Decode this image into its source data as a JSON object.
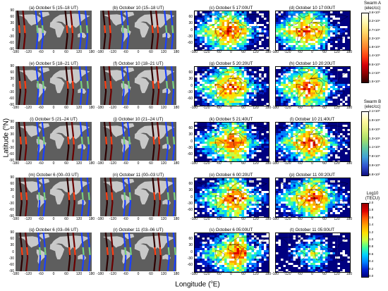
{
  "axis": {
    "ylabel_main": "Latitude (",
    "ylabel_deg": "o",
    "ylabel_tail": "N)",
    "xlabel_main": "Longitude (",
    "xlabel_deg": "o",
    "xlabel_tail": "E)",
    "lat_ticks": [
      "90",
      "60",
      "30",
      "0",
      "-30",
      "-60",
      "-90"
    ],
    "lon_ticks": [
      "-180",
      "-120",
      "-60",
      "0",
      "60",
      "120",
      "180"
    ],
    "tec_lat_ticks": [
      "60",
      "30",
      "0",
      "-30",
      "-60"
    ],
    "tec_lon_ticks": [
      "-180",
      "-120",
      "-60",
      "0",
      "60",
      "120",
      "180"
    ]
  },
  "left_panels": [
    {
      "label": "(a) October 5 (15–18 UT)"
    },
    {
      "label": "(b) October 10 (15–18 UT)"
    },
    {
      "label": "(e) October 5 (18–21 UT)"
    },
    {
      "label": "(f) October 10 (18–21 UT)"
    },
    {
      "label": "(i) October 5 (21–24 UT)"
    },
    {
      "label": "(j) October 10 (21–24 UT)"
    },
    {
      "label": "(m) October 6 (00–03 UT)"
    },
    {
      "label": "(n) October 11 (00–03 UT)"
    },
    {
      "label": "(q) October 6 (03–06 UT)"
    },
    {
      "label": "(r) October 11 (03–06 UT)"
    }
  ],
  "right_panels": [
    {
      "label": "(c) October 5 17:00UT"
    },
    {
      "label": "(d) October 10 17:00UT"
    },
    {
      "label": "(g) October 5 20:20UT"
    },
    {
      "label": "(h) October 10 20:20UT"
    },
    {
      "label": "(k) October 5 21:40UT"
    },
    {
      "label": "(l) October 10 21:40UT"
    },
    {
      "label": "(o) October 6 00:20UT"
    },
    {
      "label": "(p) October 11 00:20UT"
    },
    {
      "label": "(s) October 6 05:00UT"
    },
    {
      "label": "(t) October 11 05:00UT"
    }
  ],
  "colorbars": [
    {
      "title": "Swarm A",
      "unit": "(elec/cc)",
      "ticks": [
        "3.6×10⁶",
        "3.2×10⁶",
        "2.7×10⁶",
        "2.3×10⁶",
        "1.8×10⁶",
        "1.4×10⁶",
        "9.5×10⁵",
        "5.1×10⁵",
        "1.5×10⁵"
      ],
      "colors": [
        "#fffff0",
        "#fff9b0",
        "#ffe070",
        "#ffb347",
        "#ff7f2a",
        "#ff3d10",
        "#d4000a",
        "#8a0000",
        "#300000"
      ]
    },
    {
      "title": "Swarm B",
      "unit": "(elec/cc)",
      "ticks": [
        "2.1×10⁶",
        "1.9×10⁶",
        "1.6×10⁶",
        "1.3×10⁶",
        "1.1×10⁶",
        "7.8×10⁵",
        "3.9×10⁵",
        "6.8×10²"
      ],
      "colors": [
        "#ffffff",
        "#fff9a0",
        "#dff07a",
        "#a8e06a",
        "#61c8a2",
        "#40a0d8",
        "#3050d0",
        "#101080"
      ]
    },
    {
      "title": "Log10",
      "unit": "(TECU)",
      "ticks": [
        "2.0",
        "1.8",
        "1.6",
        "1.4",
        "1.2",
        "1.0",
        "0.8",
        "0.6",
        "0.4",
        "0.2",
        "0.0"
      ],
      "colors": [
        "#990000",
        "#e00000",
        "#ff5a00",
        "#ffa500",
        "#ffe000",
        "#c8ff40",
        "#40ff9a",
        "#00d0ff",
        "#0080ff",
        "#0020d0",
        "#000080"
      ]
    }
  ]
}
